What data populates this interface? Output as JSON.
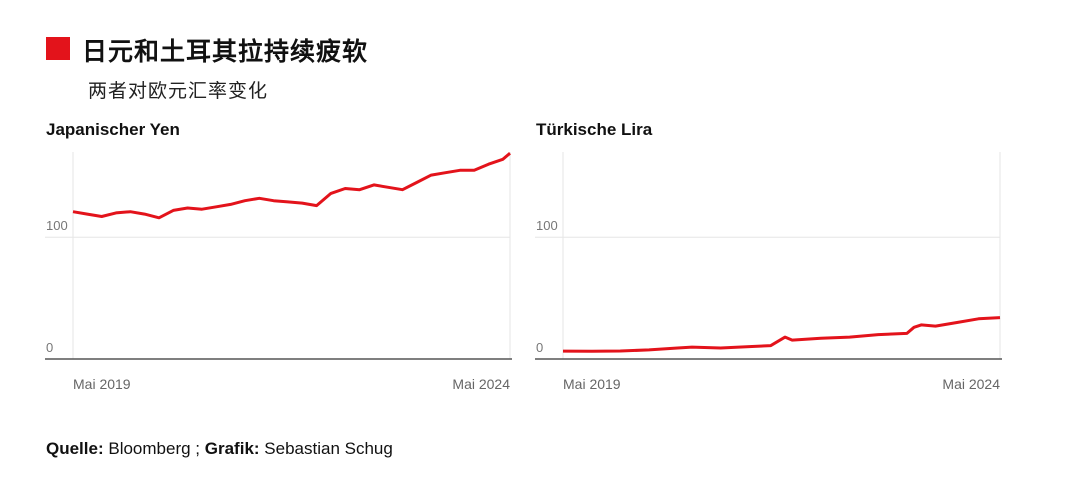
{
  "header": {
    "title": "日元和土耳其拉持续疲软",
    "subtitle": "两者对欧元汇率变化",
    "accent_color": "#e3131b"
  },
  "footer": {
    "source_label": "Quelle:",
    "source_value": "Bloomberg ;",
    "graphic_label": "Grafik:",
    "graphic_value": "Sebastian Schug"
  },
  "chart_data": [
    {
      "type": "line",
      "title": "Japanischer Yen",
      "color": "#e3131b",
      "ylim": [
        0,
        170
      ],
      "yticks": [
        "0",
        "100"
      ],
      "ytick_values": [
        0,
        100
      ],
      "xlim": [
        "2019-05",
        "2024-06"
      ],
      "xticks": [
        "Mai 2019",
        "Mai 2024"
      ],
      "xtick_values": [
        "2019-05",
        "2024-05"
      ],
      "grid": true,
      "x": [
        "2019-05",
        "2019-07",
        "2019-09",
        "2019-11",
        "2020-01",
        "2020-03",
        "2020-05",
        "2020-07",
        "2020-09",
        "2020-11",
        "2021-01",
        "2021-03",
        "2021-05",
        "2021-07",
        "2021-09",
        "2021-11",
        "2022-01",
        "2022-03",
        "2022-05",
        "2022-07",
        "2022-09",
        "2022-11",
        "2023-01",
        "2023-03",
        "2023-05",
        "2023-07",
        "2023-09",
        "2023-11",
        "2024-01",
        "2024-03",
        "2024-05",
        "2024-06"
      ],
      "values": [
        121,
        119,
        117,
        120,
        121,
        119,
        116,
        122,
        124,
        123,
        125,
        127,
        130,
        132,
        130,
        129,
        128,
        126,
        136,
        140,
        139,
        143,
        141,
        139,
        145,
        151,
        153,
        155,
        155,
        160,
        164,
        169
      ]
    },
    {
      "type": "line",
      "title": "Türkische Lira",
      "color": "#e3131b",
      "ylim": [
        0,
        170
      ],
      "yticks": [
        "0",
        "100"
      ],
      "ytick_values": [
        0,
        100
      ],
      "xlim": [
        "2019-05",
        "2024-06"
      ],
      "xticks": [
        "Mai 2019",
        "Mai 2024"
      ],
      "xtick_values": [
        "2019-05",
        "2024-05"
      ],
      "grid": true,
      "x": [
        "2019-05",
        "2019-09",
        "2020-01",
        "2020-05",
        "2020-09",
        "2020-11",
        "2021-03",
        "2021-07",
        "2021-10",
        "2021-12",
        "2022-01",
        "2022-05",
        "2022-09",
        "2023-01",
        "2023-05",
        "2023-06",
        "2023-07",
        "2023-09",
        "2023-12",
        "2024-03",
        "2024-06"
      ],
      "values": [
        6.5,
        6.3,
        6.6,
        7.5,
        9,
        9.8,
        9,
        10.2,
        11,
        18,
        15.5,
        17,
        18,
        20,
        21,
        26,
        28,
        27,
        30,
        33,
        34
      ]
    }
  ]
}
